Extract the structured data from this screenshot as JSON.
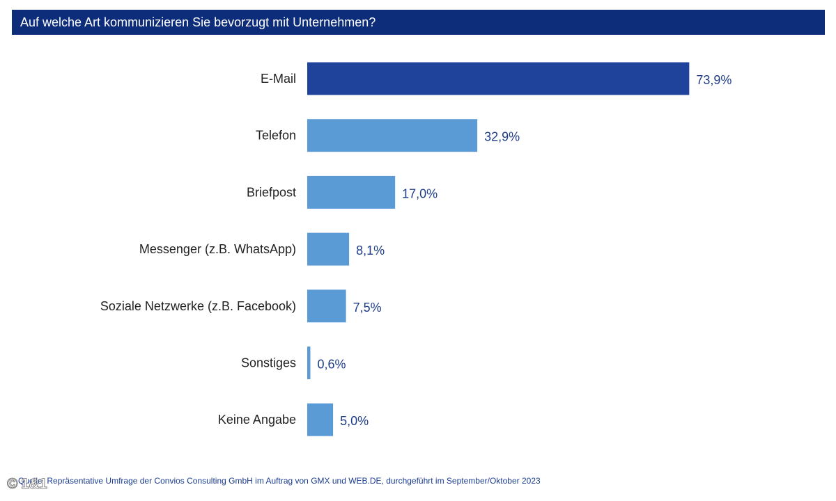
{
  "chart_data": {
    "type": "bar",
    "orientation": "horizontal",
    "title": "Auf welche Art kommunizieren Sie bevorzugt mit Unternehmen?",
    "categories": [
      "E-Mail",
      "Telefon",
      "Briefpost",
      "Messenger (z.B. WhatsApp)",
      "Soziale Netzwerke (z.B. Facebook)",
      "Sonstiges",
      "Keine Angabe"
    ],
    "values": [
      73.9,
      32.9,
      17.0,
      8.1,
      7.5,
      0.6,
      5.0
    ],
    "value_labels": [
      "73,9%",
      "32,9%",
      "17,0%",
      "8,1%",
      "7,5%",
      "0,6%",
      "5,0%"
    ],
    "unit": "%",
    "xlim": [
      0,
      100
    ],
    "grid": false,
    "legend": "none",
    "colors": {
      "highlight_bar": "#1f439b",
      "bar": "#5b9bd5",
      "value_label": "#1f3c88",
      "category_label": "#222222",
      "title_background": "#0d2d7a",
      "title_text": "#ffffff"
    },
    "highlight_index": 0
  },
  "footer": {
    "source": "Quelle: Repräsentative Umfrage der Convios Consulting GmbH im Auftrag von GMX und WEB.DE, durchgeführt im September/Oktober 2023",
    "copyright": "© 1&1"
  }
}
